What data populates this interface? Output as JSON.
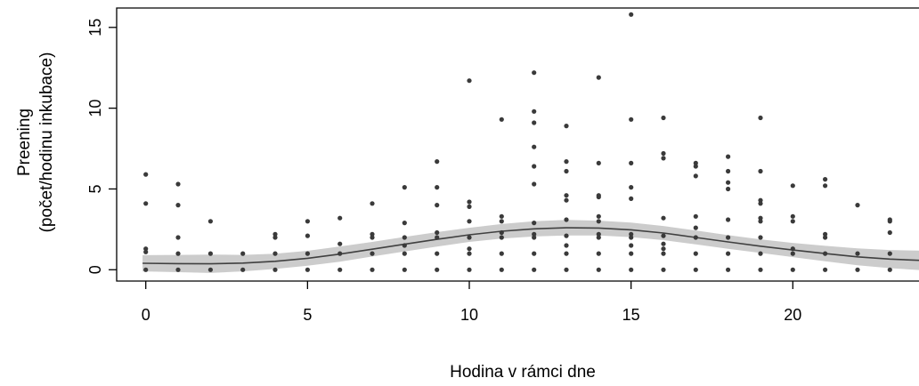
{
  "chart_data": {
    "type": "scatter",
    "title": "",
    "xlabel": "Hodina v rámci dne",
    "ylabel_line1": "Preening",
    "ylabel_line2": "(počet/hodinu inkubace)",
    "xlim": [
      -0.9,
      23.9
    ],
    "ylim": [
      -0.7,
      16.2
    ],
    "x_ticks": [
      0,
      5,
      10,
      15,
      20
    ],
    "y_ticks": [
      0,
      5,
      10,
      15
    ],
    "colors": {
      "points": "#3a3a3a",
      "band": "#cccccc",
      "line": "#404040",
      "axis": "#000000"
    },
    "points": [
      [
        0,
        5.9
      ],
      [
        0,
        4.1
      ],
      [
        0,
        1.3
      ],
      [
        0,
        1.1
      ],
      [
        0,
        0
      ],
      [
        1,
        5.3
      ],
      [
        1,
        4
      ],
      [
        1,
        2
      ],
      [
        1,
        1
      ],
      [
        1,
        0
      ],
      [
        2,
        3
      ],
      [
        2,
        1
      ],
      [
        2,
        0
      ],
      [
        3,
        1
      ],
      [
        3,
        0
      ],
      [
        4,
        2.2
      ],
      [
        4,
        2
      ],
      [
        4,
        1
      ],
      [
        4,
        0
      ],
      [
        5,
        3
      ],
      [
        5,
        2.1
      ],
      [
        5,
        1
      ],
      [
        5,
        0
      ],
      [
        6,
        3.2
      ],
      [
        6,
        1.6
      ],
      [
        6,
        1
      ],
      [
        6,
        0
      ],
      [
        7,
        4.1
      ],
      [
        7,
        2.2
      ],
      [
        7,
        2
      ],
      [
        7,
        1
      ],
      [
        7,
        0
      ],
      [
        8,
        5.1
      ],
      [
        8,
        2.9
      ],
      [
        8,
        2
      ],
      [
        8,
        1.5
      ],
      [
        8,
        1
      ],
      [
        8,
        0
      ],
      [
        9,
        6.7
      ],
      [
        9,
        5.1
      ],
      [
        9,
        4
      ],
      [
        9,
        2.3
      ],
      [
        9,
        2
      ],
      [
        9,
        1
      ],
      [
        9,
        0
      ],
      [
        10,
        11.7
      ],
      [
        10,
        4.2
      ],
      [
        10,
        3.9
      ],
      [
        10,
        3
      ],
      [
        10,
        2
      ],
      [
        10,
        1.3
      ],
      [
        10,
        1
      ],
      [
        10,
        0
      ],
      [
        11,
        9.3
      ],
      [
        11,
        3.3
      ],
      [
        11,
        3
      ],
      [
        11,
        2.3
      ],
      [
        11,
        2
      ],
      [
        11,
        1
      ],
      [
        11,
        0
      ],
      [
        12,
        12.2
      ],
      [
        12,
        9.8
      ],
      [
        12,
        9.1
      ],
      [
        12,
        7.6
      ],
      [
        12,
        6.4
      ],
      [
        12,
        5.3
      ],
      [
        12,
        2.9
      ],
      [
        12,
        2.2
      ],
      [
        12,
        2
      ],
      [
        12,
        1
      ],
      [
        12,
        0
      ],
      [
        13,
        8.9
      ],
      [
        13,
        6.7
      ],
      [
        13,
        6.1
      ],
      [
        13,
        4.6
      ],
      [
        13,
        4.3
      ],
      [
        13,
        3.1
      ],
      [
        13,
        2.1
      ],
      [
        13,
        1.5
      ],
      [
        13,
        1
      ],
      [
        13,
        0
      ],
      [
        14,
        11.9
      ],
      [
        14,
        6.6
      ],
      [
        14,
        4.6
      ],
      [
        14,
        4.5
      ],
      [
        14,
        3.3
      ],
      [
        14,
        3
      ],
      [
        14,
        2.2
      ],
      [
        14,
        2
      ],
      [
        14,
        1
      ],
      [
        14,
        0
      ],
      [
        15,
        15.8
      ],
      [
        15,
        9.3
      ],
      [
        15,
        6.6
      ],
      [
        15,
        5.1
      ],
      [
        15,
        4.4
      ],
      [
        15,
        2.2
      ],
      [
        15,
        2
      ],
      [
        15,
        1.5
      ],
      [
        15,
        1
      ],
      [
        15,
        0
      ],
      [
        16,
        9.4
      ],
      [
        16,
        7.2
      ],
      [
        16,
        6.9
      ],
      [
        16,
        3.2
      ],
      [
        16,
        2.1
      ],
      [
        16,
        1.6
      ],
      [
        16,
        1.3
      ],
      [
        16,
        1
      ],
      [
        16,
        0
      ],
      [
        17,
        6.6
      ],
      [
        17,
        6.4
      ],
      [
        17,
        5.8
      ],
      [
        17,
        3.3
      ],
      [
        17,
        2.6
      ],
      [
        17,
        2
      ],
      [
        17,
        1
      ],
      [
        17,
        0
      ],
      [
        18,
        7
      ],
      [
        18,
        6.1
      ],
      [
        18,
        5.4
      ],
      [
        18,
        5
      ],
      [
        18,
        3.1
      ],
      [
        18,
        2
      ],
      [
        18,
        1
      ],
      [
        18,
        0
      ],
      [
        19,
        9.4
      ],
      [
        19,
        6.1
      ],
      [
        19,
        4.3
      ],
      [
        19,
        4.1
      ],
      [
        19,
        3.2
      ],
      [
        19,
        3
      ],
      [
        19,
        2
      ],
      [
        19,
        1
      ],
      [
        19,
        0
      ],
      [
        20,
        5.2
      ],
      [
        20,
        3.3
      ],
      [
        20,
        3
      ],
      [
        20,
        1.3
      ],
      [
        20,
        1
      ],
      [
        20,
        0
      ],
      [
        21,
        5.6
      ],
      [
        21,
        5.2
      ],
      [
        21,
        2.2
      ],
      [
        21,
        2
      ],
      [
        21,
        1
      ],
      [
        21,
        0
      ],
      [
        22,
        4
      ],
      [
        22,
        1
      ],
      [
        22,
        0
      ],
      [
        23,
        3.1
      ],
      [
        23,
        3
      ],
      [
        23,
        2.3
      ],
      [
        23,
        1
      ],
      [
        23,
        0
      ]
    ],
    "fit_curve": {
      "x": [
        -0.1,
        1,
        2,
        3,
        4,
        5,
        6,
        7,
        8,
        9,
        10,
        11,
        12,
        13,
        14,
        15,
        16,
        17,
        18,
        19,
        20,
        21,
        22,
        23,
        23.9
      ],
      "y": [
        0.4,
        0.38,
        0.37,
        0.41,
        0.52,
        0.71,
        0.97,
        1.27,
        1.58,
        1.88,
        2.16,
        2.38,
        2.53,
        2.6,
        2.58,
        2.47,
        2.27,
        2.0,
        1.72,
        1.46,
        1.22,
        1.0,
        0.8,
        0.66,
        0.58
      ],
      "lower": [
        -0.1,
        -0.15,
        -0.2,
        -0.1,
        0.05,
        0.25,
        0.5,
        0.82,
        1.13,
        1.43,
        1.72,
        1.93,
        2.06,
        2.12,
        2.12,
        2.02,
        1.83,
        1.57,
        1.3,
        1.04,
        0.78,
        0.52,
        0.28,
        0.1,
        -0.02
      ],
      "upper": [
        0.9,
        0.92,
        0.94,
        0.92,
        0.99,
        1.17,
        1.44,
        1.72,
        2.03,
        2.33,
        2.6,
        2.83,
        3.0,
        3.08,
        3.04,
        2.92,
        2.71,
        2.43,
        2.14,
        1.88,
        1.66,
        1.48,
        1.32,
        1.22,
        1.18
      ]
    }
  }
}
